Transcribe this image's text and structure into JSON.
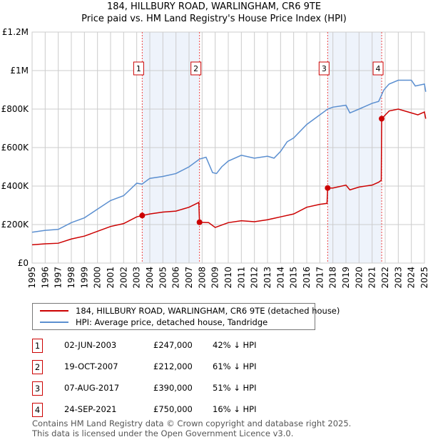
{
  "title": "184, HILLBURY ROAD, WARLINGHAM, CR6 9TE",
  "subtitle": "Price paid vs. HM Land Registry's House Price Index (HPI)",
  "chart_data": {
    "type": "line",
    "xlim": [
      1995,
      2025
    ],
    "ylim": [
      0,
      1200000
    ],
    "x_ticks": [
      "1995",
      "1996",
      "1997",
      "1998",
      "1999",
      "2000",
      "2001",
      "2002",
      "2003",
      "2004",
      "2005",
      "2006",
      "2007",
      "2008",
      "2009",
      "2010",
      "2011",
      "2012",
      "2013",
      "2014",
      "2015",
      "2016",
      "2017",
      "2018",
      "2019",
      "2020",
      "2021",
      "2022",
      "2023",
      "2024",
      "2025"
    ],
    "y_ticks": [
      {
        "v": 0,
        "label": "£0"
      },
      {
        "v": 200000,
        "label": "£200K"
      },
      {
        "v": 400000,
        "label": "£400K"
      },
      {
        "v": 600000,
        "label": "£600K"
      },
      {
        "v": 800000,
        "label": "£800K"
      },
      {
        "v": 1000000,
        "label": "£1M"
      },
      {
        "v": 1200000,
        "label": "£1.2M"
      }
    ],
    "grid": true,
    "series": [
      {
        "name": "184, HILLBURY ROAD, WARLINGHAM, CR6 9TE (detached house)",
        "color": "#cc0000",
        "points": [
          [
            1995,
            95000
          ],
          [
            1996,
            100000
          ],
          [
            1997,
            103000
          ],
          [
            1998,
            125000
          ],
          [
            1999,
            140000
          ],
          [
            2000,
            165000
          ],
          [
            2001,
            190000
          ],
          [
            2002,
            205000
          ],
          [
            2003,
            240000
          ],
          [
            2003.42,
            247000
          ],
          [
            2004,
            255000
          ],
          [
            2005,
            265000
          ],
          [
            2006,
            270000
          ],
          [
            2007,
            290000
          ],
          [
            2007.75,
            315000
          ],
          [
            2007.8,
            212000
          ],
          [
            2008.5,
            210000
          ],
          [
            2009,
            185000
          ],
          [
            2010,
            210000
          ],
          [
            2011,
            220000
          ],
          [
            2012,
            215000
          ],
          [
            2013,
            225000
          ],
          [
            2014,
            240000
          ],
          [
            2015,
            255000
          ],
          [
            2016,
            290000
          ],
          [
            2017,
            305000
          ],
          [
            2017.55,
            310000
          ],
          [
            2017.6,
            390000
          ],
          [
            2018,
            390000
          ],
          [
            2019,
            405000
          ],
          [
            2019.3,
            380000
          ],
          [
            2020,
            395000
          ],
          [
            2021,
            405000
          ],
          [
            2021.5,
            420000
          ],
          [
            2021.7,
            430000
          ],
          [
            2021.73,
            750000
          ],
          [
            2022.3,
            790000
          ],
          [
            2023,
            800000
          ],
          [
            2024,
            780000
          ],
          [
            2024.5,
            770000
          ],
          [
            2025,
            785000
          ],
          [
            2025.1,
            750000
          ]
        ]
      },
      {
        "name": "HPI: Average price, detached house, Tandridge",
        "color": "#5b8fd0",
        "points": [
          [
            1995,
            160000
          ],
          [
            1996,
            170000
          ],
          [
            1997,
            175000
          ],
          [
            1998,
            210000
          ],
          [
            1999,
            235000
          ],
          [
            2000,
            280000
          ],
          [
            2001,
            325000
          ],
          [
            2002,
            350000
          ],
          [
            2003,
            415000
          ],
          [
            2003.4,
            410000
          ],
          [
            2004,
            440000
          ],
          [
            2005,
            450000
          ],
          [
            2006,
            465000
          ],
          [
            2007,
            500000
          ],
          [
            2007.8,
            540000
          ],
          [
            2008.3,
            550000
          ],
          [
            2008.8,
            470000
          ],
          [
            2009.1,
            465000
          ],
          [
            2009.5,
            500000
          ],
          [
            2010,
            530000
          ],
          [
            2011,
            560000
          ],
          [
            2012,
            545000
          ],
          [
            2013,
            555000
          ],
          [
            2013.5,
            545000
          ],
          [
            2014,
            580000
          ],
          [
            2014.5,
            630000
          ],
          [
            2015,
            650000
          ],
          [
            2016,
            720000
          ],
          [
            2017,
            770000
          ],
          [
            2017.6,
            800000
          ],
          [
            2018,
            810000
          ],
          [
            2019,
            820000
          ],
          [
            2019.3,
            780000
          ],
          [
            2020,
            800000
          ],
          [
            2021,
            830000
          ],
          [
            2021.5,
            840000
          ],
          [
            2021.9,
            900000
          ],
          [
            2022.3,
            930000
          ],
          [
            2023,
            950000
          ],
          [
            2024,
            950000
          ],
          [
            2024.3,
            920000
          ],
          [
            2025,
            930000
          ],
          [
            2025.1,
            890000
          ]
        ]
      }
    ],
    "sales": [
      {
        "n": "1",
        "x": 2003.42,
        "y": 247000
      },
      {
        "n": "2",
        "x": 2007.8,
        "y": 212000
      },
      {
        "n": "3",
        "x": 2017.6,
        "y": 390000
      },
      {
        "n": "4",
        "x": 2021.73,
        "y": 750000
      }
    ],
    "shaded": [
      [
        2003.42,
        2007.8
      ],
      [
        2017.6,
        2021.73
      ]
    ]
  },
  "legend": {
    "red": "184, HILLBURY ROAD, WARLINGHAM, CR6 9TE (detached house)",
    "blue": "HPI: Average price, detached house, Tandridge"
  },
  "transactions": [
    {
      "n": "1",
      "date": "02-JUN-2003",
      "price": "£247,000",
      "hpi": "42% ↓ HPI"
    },
    {
      "n": "2",
      "date": "19-OCT-2007",
      "price": "£212,000",
      "hpi": "61% ↓ HPI"
    },
    {
      "n": "3",
      "date": "07-AUG-2017",
      "price": "£390,000",
      "hpi": "51% ↓ HPI"
    },
    {
      "n": "4",
      "date": "24-SEP-2021",
      "price": "£750,000",
      "hpi": "16% ↓ HPI"
    }
  ],
  "footer": {
    "line1": "Contains HM Land Registry data © Crown copyright and database right 2025.",
    "line2": "This data is licensed under the Open Government Licence v3.0."
  }
}
